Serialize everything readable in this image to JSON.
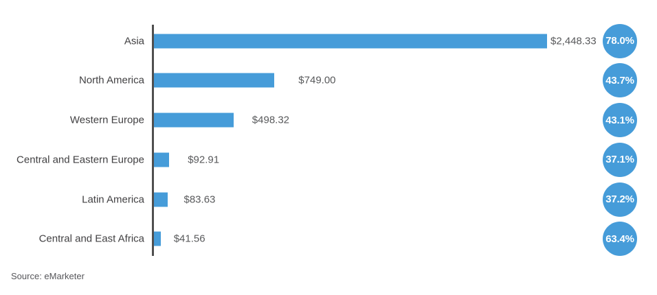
{
  "chart_data": {
    "type": "bar",
    "orientation": "horizontal",
    "title": "",
    "categories": [
      "Asia",
      "North America",
      "Western Europe",
      "Central and Eastern Europe",
      "Latin America",
      "Central and East Africa"
    ],
    "values": [
      2448.33,
      749.0,
      498.32,
      92.91,
      83.63,
      41.56
    ],
    "value_labels": [
      "$2,448.33",
      "$749.00",
      "$498.32",
      "$92.91",
      "$83.63",
      "$41.56"
    ],
    "percentages": [
      78.0,
      43.7,
      43.1,
      37.1,
      37.2,
      63.4
    ],
    "percentage_labels": [
      "78.0%",
      "43.7%",
      "43.1%",
      "37.1%",
      "37.2%",
      "63.4%"
    ],
    "source": "Source: eMarketer",
    "xlim": [
      0,
      2448.33
    ],
    "grid": false,
    "legend": false,
    "colors": {
      "bar": "#469cd9",
      "badge": "#469cd9",
      "badge_text": "#ffffff",
      "axis": "#4f4f4f",
      "category_text": "#414042",
      "value_text": "#58595b"
    }
  }
}
